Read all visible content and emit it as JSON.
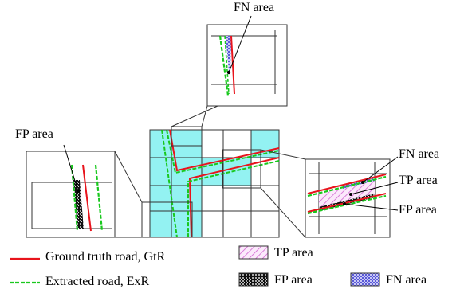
{
  "labels": {
    "fn_top": "FN area",
    "fp_left": "FP area",
    "fn_right": "FN area",
    "tp_right": "TP area",
    "fp_right": "FP area"
  },
  "legend": {
    "gtr": "Ground truth road, GtR",
    "exr": "Extracted road, ExR",
    "tp": "TP area",
    "fp": "FP area",
    "fn": "FN area"
  },
  "colors": {
    "ground_truth_road": "#e8141c",
    "extracted_road": "#19c81e",
    "buffer_cells": "#93f2f2",
    "tp_hatch": "#d060d0",
    "fn_fill": "#4848d0",
    "fp_fill": "#222222",
    "grid_lines": "#333333"
  }
}
